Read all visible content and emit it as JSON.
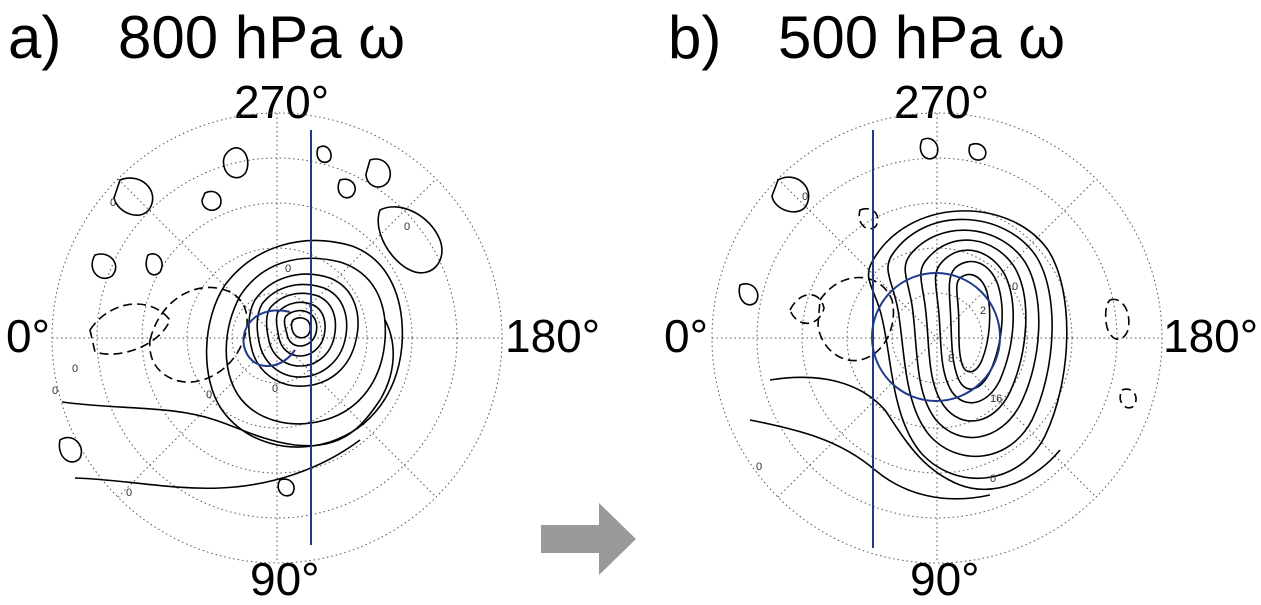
{
  "panels": [
    {
      "id": "a",
      "letter": "a)",
      "title": "800 hPa ω",
      "labels": {
        "top": "270°",
        "bottom": "90°",
        "left": "0°",
        "right": "180°"
      },
      "contour_labels": [
        "0",
        "0",
        "0",
        "0",
        "0",
        "0",
        "0",
        "0"
      ]
    },
    {
      "id": "b",
      "letter": "b)",
      "title": "500 hPa ω",
      "labels": {
        "top": "270°",
        "bottom": "90°",
        "left": "0°",
        "right": "180°"
      },
      "contour_labels": [
        "0",
        "0",
        "0",
        "0",
        "8",
        "16",
        "2"
      ]
    }
  ],
  "colors": {
    "track": "#1f3a8a",
    "arrow": "#999999",
    "contour": "#000000"
  },
  "arrow_icon": "right-arrow-icon"
}
